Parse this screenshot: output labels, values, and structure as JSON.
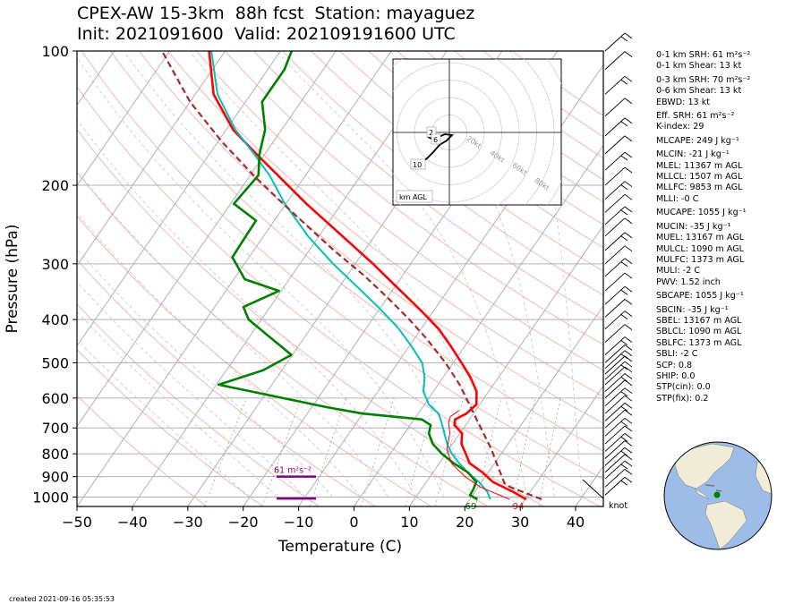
{
  "title": {
    "line1": "CPEX-AW 15-3km  88h fcst  Station: mayaguez",
    "line2": "Init: 2021091600  Valid: 202109191600 UTC"
  },
  "chart_data": {
    "type": "skew-t",
    "xlabel": "Temperature (C)",
    "ylabel": "Pressure (hPa)",
    "xlim": [
      -50,
      45
    ],
    "ylim": [
      1050,
      100
    ],
    "x_ticks": [
      "−50",
      "−40",
      "−30",
      "−20",
      "−10",
      "0",
      "10",
      "20",
      "30",
      "40"
    ],
    "y_ticks": [
      "100",
      "200",
      "300",
      "400",
      "500",
      "600",
      "700",
      "800",
      "900",
      "1000"
    ],
    "series": [
      {
        "color": "#ff0000",
        "points": [
          [
            1012,
            30.2
          ],
          [
            975,
            27.0
          ],
          [
            925,
            22.0
          ],
          [
            880,
            18.9
          ],
          [
            840,
            15.5
          ],
          [
            800,
            13.6
          ],
          [
            760,
            11.6
          ],
          [
            720,
            10.4
          ],
          [
            690,
            8.0
          ],
          [
            670,
            7.4
          ],
          [
            650,
            8.7
          ],
          [
            620,
            9.4
          ],
          [
            580,
            7.8
          ],
          [
            540,
            5.0
          ],
          [
            500,
            1.5
          ],
          [
            460,
            -2.4
          ],
          [
            420,
            -6.8
          ],
          [
            380,
            -12.6
          ],
          [
            340,
            -19.3
          ],
          [
            300,
            -26.8
          ],
          [
            260,
            -35.8
          ],
          [
            220,
            -46.3
          ],
          [
            190,
            -55.0
          ],
          [
            170,
            -61.6
          ],
          [
            150,
            -68.8
          ],
          [
            125,
            -76.7
          ],
          [
            100,
            -82.9
          ]
        ]
      },
      {
        "color": "#00c0c0",
        "points": [
          [
            1012,
            23.7
          ],
          [
            975,
            22.3
          ],
          [
            925,
            19.5
          ],
          [
            880,
            16.2
          ],
          [
            840,
            13.6
          ],
          [
            800,
            11.1
          ],
          [
            760,
            9.0
          ],
          [
            720,
            7.2
          ],
          [
            680,
            5.3
          ],
          [
            650,
            3.7
          ],
          [
            620,
            0.8
          ],
          [
            580,
            -1.8
          ],
          [
            540,
            -3.3
          ],
          [
            500,
            -5.6
          ],
          [
            460,
            -9.5
          ],
          [
            420,
            -14.0
          ],
          [
            380,
            -19.7
          ],
          [
            340,
            -26.4
          ],
          [
            300,
            -34.0
          ],
          [
            260,
            -42.0
          ],
          [
            220,
            -50.2
          ],
          [
            190,
            -56.5
          ],
          [
            170,
            -62.0
          ],
          [
            150,
            -68.4
          ],
          [
            125,
            -76.0
          ],
          [
            100,
            -82.5
          ]
        ]
      },
      {
        "color": "#008000",
        "points": [
          [
            1012,
            21.4
          ],
          [
            990,
            19.5
          ],
          [
            960,
            19.4
          ],
          [
            925,
            19.0
          ],
          [
            880,
            16.3
          ],
          [
            840,
            12.6
          ],
          [
            800,
            9.3
          ],
          [
            760,
            6.4
          ],
          [
            720,
            4.4
          ],
          [
            690,
            3.7
          ],
          [
            670,
            1.4
          ],
          [
            650,
            -10.0
          ],
          [
            630,
            -17.0
          ],
          [
            600,
            -26.3
          ],
          [
            560,
            -39.6
          ],
          [
            520,
            -33.4
          ],
          [
            480,
            -30.2
          ],
          [
            440,
            -36.0
          ],
          [
            400,
            -42.3
          ],
          [
            375,
            -44.8
          ],
          [
            345,
            -40.4
          ],
          [
            325,
            -48.0
          ],
          [
            290,
            -53.0
          ],
          [
            260,
            -53.2
          ],
          [
            240,
            -53.3
          ],
          [
            220,
            -59.4
          ],
          [
            190,
            -58.5
          ],
          [
            170,
            -61.0
          ],
          [
            150,
            -63.0
          ],
          [
            130,
            -67.0
          ],
          [
            110,
            -67.0
          ],
          [
            100,
            -68.0
          ]
        ]
      },
      {
        "color": "#a52a2a",
        "points": [
          [
            1012,
            33.0
          ],
          [
            950,
            25.8
          ],
          [
            930,
            24.2
          ],
          [
            850,
            20.8
          ],
          [
            780,
            17.6
          ],
          [
            700,
            13.1
          ],
          [
            620,
            8.1
          ],
          [
            560,
            3.9
          ],
          [
            500,
            -1.4
          ],
          [
            440,
            -8.0
          ],
          [
            400,
            -13.3
          ],
          [
            360,
            -19.5
          ],
          [
            320,
            -26.7
          ],
          [
            280,
            -35.5
          ],
          [
            250,
            -42.6
          ],
          [
            220,
            -50.5
          ],
          [
            190,
            -59.4
          ],
          [
            160,
            -69.2
          ],
          [
            130,
            -80.0
          ],
          [
            100,
            -91.4
          ]
        ]
      },
      {
        "color": "#ff0000",
        "points": [
          [
            1012,
            27.2
          ],
          [
            950,
            20.4
          ],
          [
            900,
            16.3
          ],
          [
            840,
            12.2
          ],
          [
            780,
            9.6
          ],
          [
            720,
            8.2
          ],
          [
            680,
            6.6
          ],
          [
            660,
            6.2
          ],
          [
            640,
            7.0
          ]
        ]
      }
    ],
    "surface_labels": [
      {
        "text": "94",
        "color": "#ff0000"
      },
      {
        "text": "69",
        "color": "#008000"
      }
    ],
    "srh_marker": {
      "label": "61 m²s⁻²",
      "pressure": 900,
      "color": "#800080"
    },
    "sfc_marker": {
      "pressure": 1008,
      "color": "#800080"
    },
    "wind_barb_pressures": [
      100,
      110,
      125,
      140,
      155,
      170,
      185,
      200,
      215,
      230,
      245,
      260,
      280,
      300,
      320,
      345,
      370,
      395,
      420,
      450,
      480,
      500,
      515,
      530,
      545,
      560,
      580,
      600,
      625,
      650,
      675,
      700,
      730,
      760,
      790,
      820,
      850,
      880,
      910,
      950,
      990
    ],
    "wind_unit": "knot",
    "hodograph": {
      "ring_labels": [
        "20kt",
        "40kt",
        "60kt",
        "80kt"
      ],
      "height_labels": [
        "2",
        "6",
        "10"
      ],
      "unit_label": "km AGL"
    }
  },
  "params": [
    "0-1 km SRH: 61 m²s⁻²",
    "0-1 km Shear: 13 kt",
    "0-3 km SRH: 70 m²s⁻²",
    "0-6 km Shear: 13 kt",
    "EBWD: 13 kt",
    "Eff. SRH: 61 m²s⁻²",
    "K-index: 29",
    "MLCAPE: 249 J kg⁻¹",
    "MLCIN: -21 J kg⁻¹",
    "MLEL: 11367 m AGL",
    "MLLCL: 1507 m AGL",
    "MLLFC: 9853 m AGL",
    "MLLI: -0 C",
    "MUCAPE: 1055 J kg⁻¹",
    "MUCIN: -35 J kg⁻¹",
    "MUEL: 13167 m AGL",
    "MULCL: 1090 m AGL",
    "MULFC: 1373 m AGL",
    "MULI: -2 C",
    "PWV: 1.52 inch",
    "SBCAPE: 1055 J kg⁻¹",
    "SBCIN: -35 J kg⁻¹",
    "SBEL: 13167 m AGL",
    "SBLCL: 1090 m AGL",
    "SBLFC: 1373 m AGL",
    "SBLI: -2 C",
    "SCP: 0.8",
    "SHIP: 0.0",
    "STP(cin): 0.0",
    "STP(fix): 0.2"
  ],
  "created": "created 2021-09-16 05:35:53",
  "globe": {
    "ocean_color": "#9dbde8",
    "land_color": "#f0ecd8",
    "marker_color": "#008000"
  }
}
